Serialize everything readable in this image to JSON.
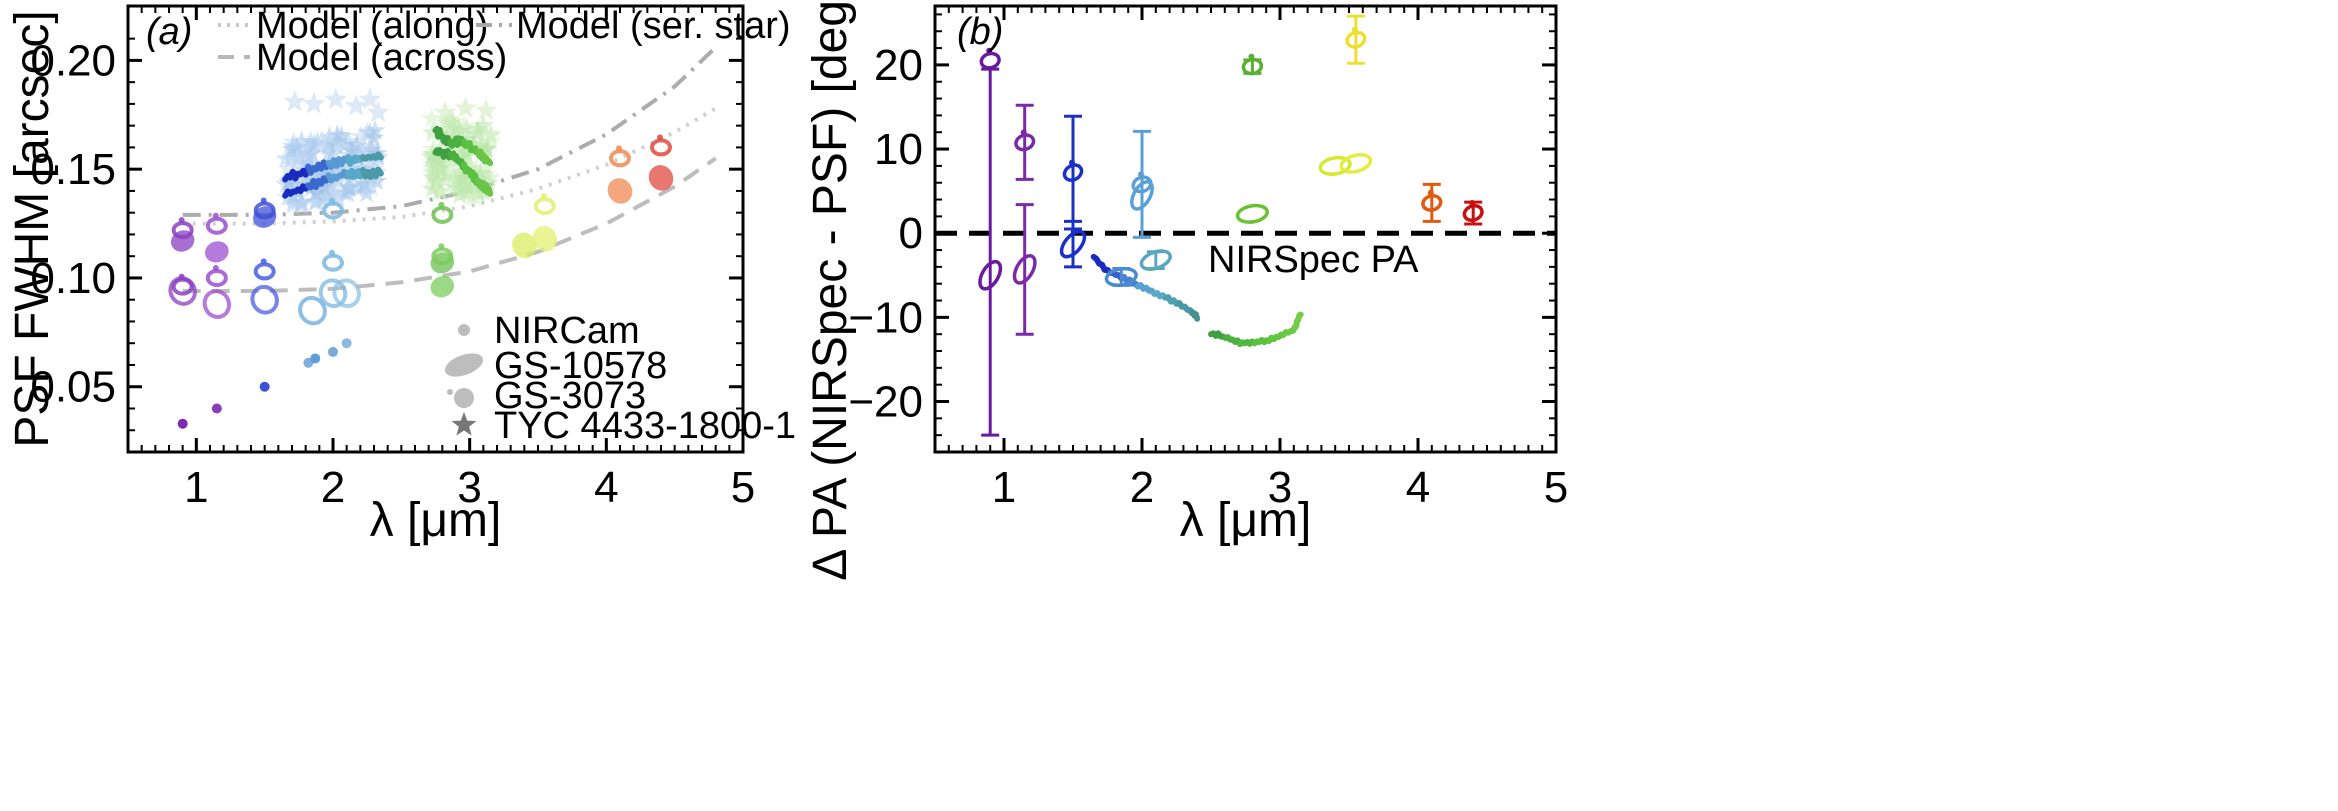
{
  "figure": {
    "background": "#ffffff"
  },
  "chart_data": [
    {
      "type": "scatter",
      "panel_label": "(a)",
      "title": "",
      "xlabel": "λ [μm]",
      "ylabel": "PSF FWHM [arcsec]",
      "xlim": [
        0.5,
        5
      ],
      "ylim": [
        0.02,
        0.225
      ],
      "xticks": [
        1,
        2,
        3,
        4,
        5
      ],
      "xtick_labels": [
        "1",
        "2",
        "3",
        "4",
        "5"
      ],
      "yticks": [
        0.05,
        0.1,
        0.15,
        0.2
      ],
      "ytick_labels": [
        "0.05",
        "0.10",
        "0.15",
        "0.20"
      ],
      "grid": false,
      "model_legend": [
        {
          "label": "Model (along)",
          "style": "dotted"
        },
        {
          "label": "Model (across)",
          "style": "dashed"
        },
        {
          "label": "Model (ser. star)",
          "style": "dashdot"
        }
      ],
      "marker_legend": [
        {
          "label": "NIRCam",
          "marker": "dot"
        },
        {
          "label": "GS-10578",
          "marker": "ellipse"
        },
        {
          "label": "GS-3073",
          "marker": "ellipse-with-dot"
        },
        {
          "label": "TYC 4433-1800-1",
          "marker": "star"
        }
      ],
      "models": {
        "along": {
          "x": [
            0.9,
            1.5,
            2.0,
            2.5,
            3.0,
            3.5,
            4.0,
            4.5,
            4.8
          ],
          "y": [
            0.125,
            0.125,
            0.126,
            0.128,
            0.133,
            0.141,
            0.152,
            0.167,
            0.178
          ]
        },
        "across": {
          "x": [
            0.9,
            1.5,
            2.0,
            2.5,
            3.0,
            3.5,
            4.0,
            4.5,
            4.8
          ],
          "y": [
            0.094,
            0.094,
            0.095,
            0.098,
            0.103,
            0.112,
            0.125,
            0.142,
            0.155
          ]
        },
        "ser_star": {
          "x": [
            0.9,
            1.5,
            2.0,
            2.5,
            3.0,
            3.5,
            4.0,
            4.5,
            4.8
          ],
          "y": [
            0.129,
            0.129,
            0.13,
            0.133,
            0.14,
            0.15,
            0.166,
            0.188,
            0.206
          ]
        }
      },
      "nircam": {
        "x": [
          0.9,
          1.15,
          1.5,
          1.82,
          1.87,
          2.0,
          2.1
        ],
        "y": [
          0.033,
          0.04,
          0.05,
          0.061,
          0.063,
          0.066,
          0.07
        ],
        "colors": [
          "#7b2cb0",
          "#8a3cc0",
          "#3d4fd8",
          "#7fb0dd",
          "#5f9dd6",
          "#7aaad8",
          "#8fbae0"
        ]
      },
      "gs10578": [
        {
          "x": 0.9,
          "y": 0.117,
          "rx": 0.05,
          "ry": 0.004,
          "color": "#8b3fc0"
        },
        {
          "x": 0.9,
          "y": 0.094,
          "rx": 0.06,
          "ry": 0.005,
          "color": "#8b3fc0"
        },
        {
          "x": 1.15,
          "y": 0.112,
          "rx": 0.05,
          "ry": 0.004,
          "color": "#9b4fd0"
        },
        {
          "x": 1.15,
          "y": 0.088,
          "rx": 0.06,
          "ry": 0.005,
          "color": "#9b4fd0"
        },
        {
          "x": 1.5,
          "y": 0.128,
          "rx": 0.05,
          "ry": 0.004,
          "color": "#4050d8"
        },
        {
          "x": 1.5,
          "y": 0.09,
          "rx": 0.07,
          "ry": 0.005,
          "color": "#4a5ee0"
        },
        {
          "x": 1.85,
          "y": 0.085,
          "rx": 0.06,
          "ry": 0.005,
          "color": "#6aa8dc"
        },
        {
          "x": 2.0,
          "y": 0.093,
          "rx": 0.07,
          "ry": 0.005,
          "color": "#7ab8e0"
        },
        {
          "x": 2.1,
          "y": 0.093,
          "rx": 0.07,
          "ry": 0.005,
          "color": "#8cc2e4"
        },
        {
          "x": 2.8,
          "y": 0.107,
          "rx": 0.05,
          "ry": 0.004,
          "color": "#6cc050"
        },
        {
          "x": 2.8,
          "y": 0.096,
          "rx": 0.05,
          "ry": 0.004,
          "color": "#7acc5c"
        },
        {
          "x": 3.4,
          "y": 0.115,
          "rx": 0.06,
          "ry": 0.005,
          "color": "#d8ec60"
        },
        {
          "x": 3.55,
          "y": 0.118,
          "rx": 0.06,
          "ry": 0.005,
          "color": "#e2f070"
        },
        {
          "x": 4.1,
          "y": 0.14,
          "rx": 0.06,
          "ry": 0.005,
          "color": "#f08a50"
        },
        {
          "x": 4.4,
          "y": 0.146,
          "rx": 0.06,
          "ry": 0.005,
          "color": "#e04a40"
        }
      ],
      "gs3073": [
        {
          "x": 0.9,
          "y": 0.122,
          "color": "#8b3fc0"
        },
        {
          "x": 0.9,
          "y": 0.096,
          "color": "#8b3fc0"
        },
        {
          "x": 1.15,
          "y": 0.124,
          "color": "#9b4fd0"
        },
        {
          "x": 1.15,
          "y": 0.1,
          "color": "#9b4fd0"
        },
        {
          "x": 1.5,
          "y": 0.131,
          "color": "#4050d8"
        },
        {
          "x": 1.5,
          "y": 0.103,
          "color": "#4a5ee0"
        },
        {
          "x": 2.0,
          "y": 0.107,
          "color": "#7ab8e0"
        },
        {
          "x": 2.0,
          "y": 0.131,
          "color": "#7ab8e0"
        },
        {
          "x": 2.8,
          "y": 0.129,
          "color": "#6cc050"
        },
        {
          "x": 2.8,
          "y": 0.11,
          "color": "#7acc5c"
        },
        {
          "x": 3.55,
          "y": 0.133,
          "color": "#e2f070"
        },
        {
          "x": 4.1,
          "y": 0.155,
          "color": "#f08a50"
        },
        {
          "x": 4.4,
          "y": 0.16,
          "color": "#e04a40"
        }
      ],
      "tyc_lines": [
        {
          "x": [
            1.65,
            1.8,
            1.95,
            2.1,
            2.2,
            2.35
          ],
          "y": [
            0.146,
            0.149,
            0.152,
            0.154,
            0.155,
            0.156
          ],
          "colors": [
            "#1a2cc0",
            "#3a6ad0",
            "#5a9ad4",
            "#5aa8c8",
            "#4a9aa8"
          ]
        },
        {
          "x": [
            1.65,
            1.8,
            1.95,
            2.1,
            2.2,
            2.35
          ],
          "y": [
            0.138,
            0.142,
            0.145,
            0.148,
            0.148,
            0.148
          ],
          "colors": [
            "#1a2cc0",
            "#3a6ad0",
            "#5a9ad4",
            "#5aa8c8",
            "#4a9aa8"
          ]
        },
        {
          "x": [
            2.75,
            2.85,
            2.95,
            3.05,
            3.15
          ],
          "y": [
            0.168,
            0.162,
            0.163,
            0.158,
            0.153
          ],
          "colors": [
            "#3ea040",
            "#4ab040",
            "#5ac040",
            "#6ac448"
          ]
        },
        {
          "x": [
            2.75,
            2.85,
            2.95,
            3.05,
            3.15
          ],
          "y": [
            0.158,
            0.157,
            0.152,
            0.145,
            0.14
          ],
          "colors": [
            "#3ea040",
            "#4ab040",
            "#5ac040",
            "#6ac448"
          ]
        }
      ]
    },
    {
      "type": "scatter",
      "panel_label": "(b)",
      "title": "",
      "xlabel": "λ [μm]",
      "ylabel": "Δ PA (NIRSpec - PSF) [degree]",
      "xlim": [
        0.5,
        5
      ],
      "ylim": [
        -26,
        27
      ],
      "xticks": [
        1,
        2,
        3,
        4,
        5
      ],
      "xtick_labels": [
        "1",
        "2",
        "3",
        "4",
        "5"
      ],
      "yticks": [
        -20,
        -10,
        0,
        10,
        20
      ],
      "ytick_labels": [
        "−20",
        "−10",
        "0",
        "10",
        "20"
      ],
      "grid": false,
      "reference_line": {
        "y": 0,
        "label": "NIRSpec PA"
      },
      "points": [
        {
          "x": 0.9,
          "y": 20.5,
          "err": 0,
          "color": "#6a1aa0",
          "marker": "ellipse-with-dot"
        },
        {
          "x": 0.9,
          "y": -5.0,
          "err": 0,
          "color": "#6a1aa0",
          "marker": "ellipse"
        },
        {
          "x": 1.15,
          "y": 10.8,
          "err": 4.4,
          "color": "#7a2aa8",
          "marker": "ellipse-with-dot"
        },
        {
          "x": 1.15,
          "y": -4.3,
          "err": 7.7,
          "color": "#7a2aa8",
          "marker": "ellipse"
        },
        {
          "x": 1.5,
          "y": 7.2,
          "err": 6.7,
          "color": "#1a30c8",
          "marker": "ellipse-with-dot"
        },
        {
          "x": 1.5,
          "y": -1.3,
          "err": 2.7,
          "color": "#1a30c8",
          "marker": "ellipse"
        },
        {
          "x": 1.85,
          "y": -5.2,
          "err": 1.0,
          "color": "#4a8ad0",
          "marker": "ellipse"
        },
        {
          "x": 2.0,
          "y": 5.8,
          "err": 6.3,
          "color": "#5aa0d4",
          "marker": "ellipse-with-dot"
        },
        {
          "x": 2.0,
          "y": 4.5,
          "err": 0,
          "color": "#5aa0d4",
          "marker": "ellipse"
        },
        {
          "x": 2.1,
          "y": -3.2,
          "err": 1.0,
          "color": "#5aa8c0",
          "marker": "ellipse"
        },
        {
          "x": 2.8,
          "y": 19.8,
          "err": 0.8,
          "color": "#5ab030",
          "marker": "ellipse-with-dot"
        },
        {
          "x": 2.8,
          "y": 2.3,
          "err": 0,
          "color": "#6ac030",
          "marker": "ellipse"
        },
        {
          "x": 3.4,
          "y": 8.0,
          "err": 0,
          "color": "#d4e830",
          "marker": "ellipse"
        },
        {
          "x": 3.55,
          "y": 8.3,
          "err": 0,
          "color": "#e4ec40",
          "marker": "ellipse"
        },
        {
          "x": 3.55,
          "y": 23.0,
          "err": 2.8,
          "color": "#ece030",
          "marker": "ellipse-with-dot"
        },
        {
          "x": 4.1,
          "y": 3.6,
          "err": 2.2,
          "color": "#e05a10",
          "marker": "ellipse-with-dot"
        },
        {
          "x": 4.4,
          "y": 2.4,
          "err": 1.3,
          "color": "#c81010",
          "marker": "ellipse-with-dot"
        }
      ],
      "error_bar_overrides": [
        {
          "x": 0.9,
          "ylow": -24,
          "yhigh": 19.5,
          "color": "#6a1aa0"
        }
      ],
      "tyc_lines": [
        {
          "x": [
            1.65,
            1.75,
            1.85,
            1.95,
            2.05,
            2.15,
            2.25,
            2.35,
            2.4
          ],
          "y": [
            -2.8,
            -4.5,
            -5.2,
            -6.0,
            -6.7,
            -7.5,
            -8.2,
            -9.2,
            -10.0
          ],
          "colors": [
            "#1a2cc0",
            "#3a60d0",
            "#4a80d0",
            "#5aa0d0",
            "#5aa8c8",
            "#50a0b0",
            "#4a98a8",
            "#489090"
          ]
        },
        {
          "x": [
            2.5,
            2.6,
            2.7,
            2.8,
            2.9,
            3.0,
            3.1,
            3.15
          ],
          "y": [
            -11.8,
            -12.4,
            -13.0,
            -13.0,
            -12.8,
            -12.2,
            -11.5,
            -9.5
          ],
          "colors": [
            "#3ea040",
            "#4ab040",
            "#52b840",
            "#5ac040",
            "#62c440",
            "#6ac848",
            "#72cc48"
          ]
        }
      ]
    }
  ]
}
